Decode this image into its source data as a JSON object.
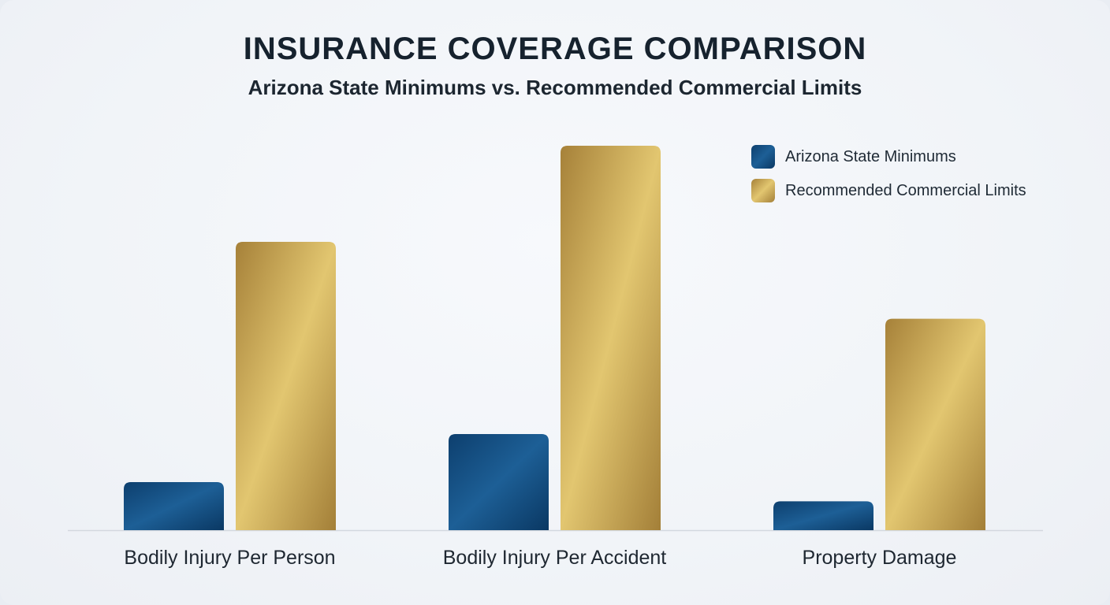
{
  "chart_data": {
    "type": "bar",
    "title": "INSURANCE COVERAGE COMPARISON",
    "subtitle": "Arizona State Minimums vs. Recommended Commercial Limits",
    "xlabel": "",
    "ylabel": "",
    "categories": [
      "Bodily Injury Per Person",
      "Bodily Injury Per Accident",
      "Property Damage"
    ],
    "series": [
      {
        "name": "Arizona State Minimums",
        "values": [
          25,
          50,
          15
        ]
      },
      {
        "name": "Recommended Commercial Limits",
        "values": [
          150,
          200,
          110
        ]
      }
    ],
    "ylim": [
      0,
      210
    ],
    "grid": false,
    "legend_position": "top-right",
    "colors": {
      "Arizona State Minimums": [
        "#0d3f6e",
        "#1d5f96",
        "#0a3863"
      ],
      "Recommended Commercial Limits": [
        "#a68139",
        "#e2c670",
        "#a37f38"
      ]
    }
  }
}
